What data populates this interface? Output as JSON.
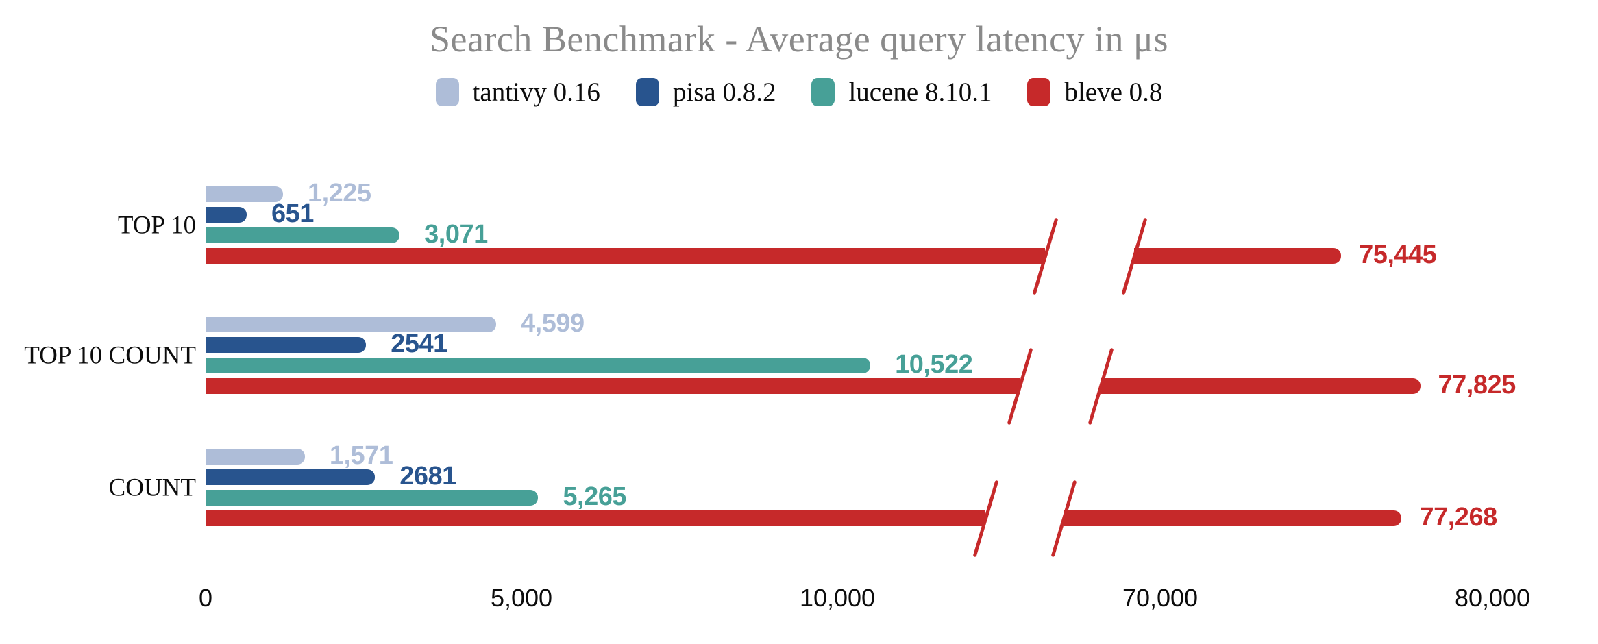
{
  "title": "Search Benchmark - Average query latency in μs",
  "chart_data": {
    "type": "bar",
    "orientation": "horizontal",
    "title": "Search Benchmark - Average query latency in μs",
    "title_color": "#8a8a8a",
    "categories": [
      "TOP 10",
      "TOP 10 COUNT",
      "COUNT"
    ],
    "series": [
      {
        "name": "tantivy 0.16",
        "color": "#aebdd8",
        "values": [
          1225,
          4599,
          1571
        ],
        "value_labels": [
          "1,225",
          "4,599",
          "1,571"
        ]
      },
      {
        "name": "pisa 0.8.2",
        "color": "#28548e",
        "values": [
          651,
          2541,
          2681
        ],
        "value_labels": [
          "651",
          "2541",
          "2681"
        ]
      },
      {
        "name": "lucene 8.10.1",
        "color": "#47a097",
        "values": [
          3071,
          10522,
          5265
        ],
        "value_labels": [
          "3,071",
          "10,522",
          "5,265"
        ]
      },
      {
        "name": "bleve 0.8",
        "color": "#c6292a",
        "values": [
          75445,
          77825,
          77268
        ],
        "value_labels": [
          "75,445",
          "77,825",
          "77,268"
        ]
      }
    ],
    "x_axis": {
      "ticks": [
        0,
        5000,
        10000,
        70000,
        80000
      ],
      "tick_labels": [
        "0",
        "5,000",
        "10,000",
        "70,000",
        "80,000"
      ],
      "axis_break": {
        "between": [
          10000,
          70000
        ],
        "style": "diagonal-slashes"
      }
    },
    "legend_position": "top",
    "grid": false,
    "background": "#ffffff",
    "unit": "μs"
  }
}
